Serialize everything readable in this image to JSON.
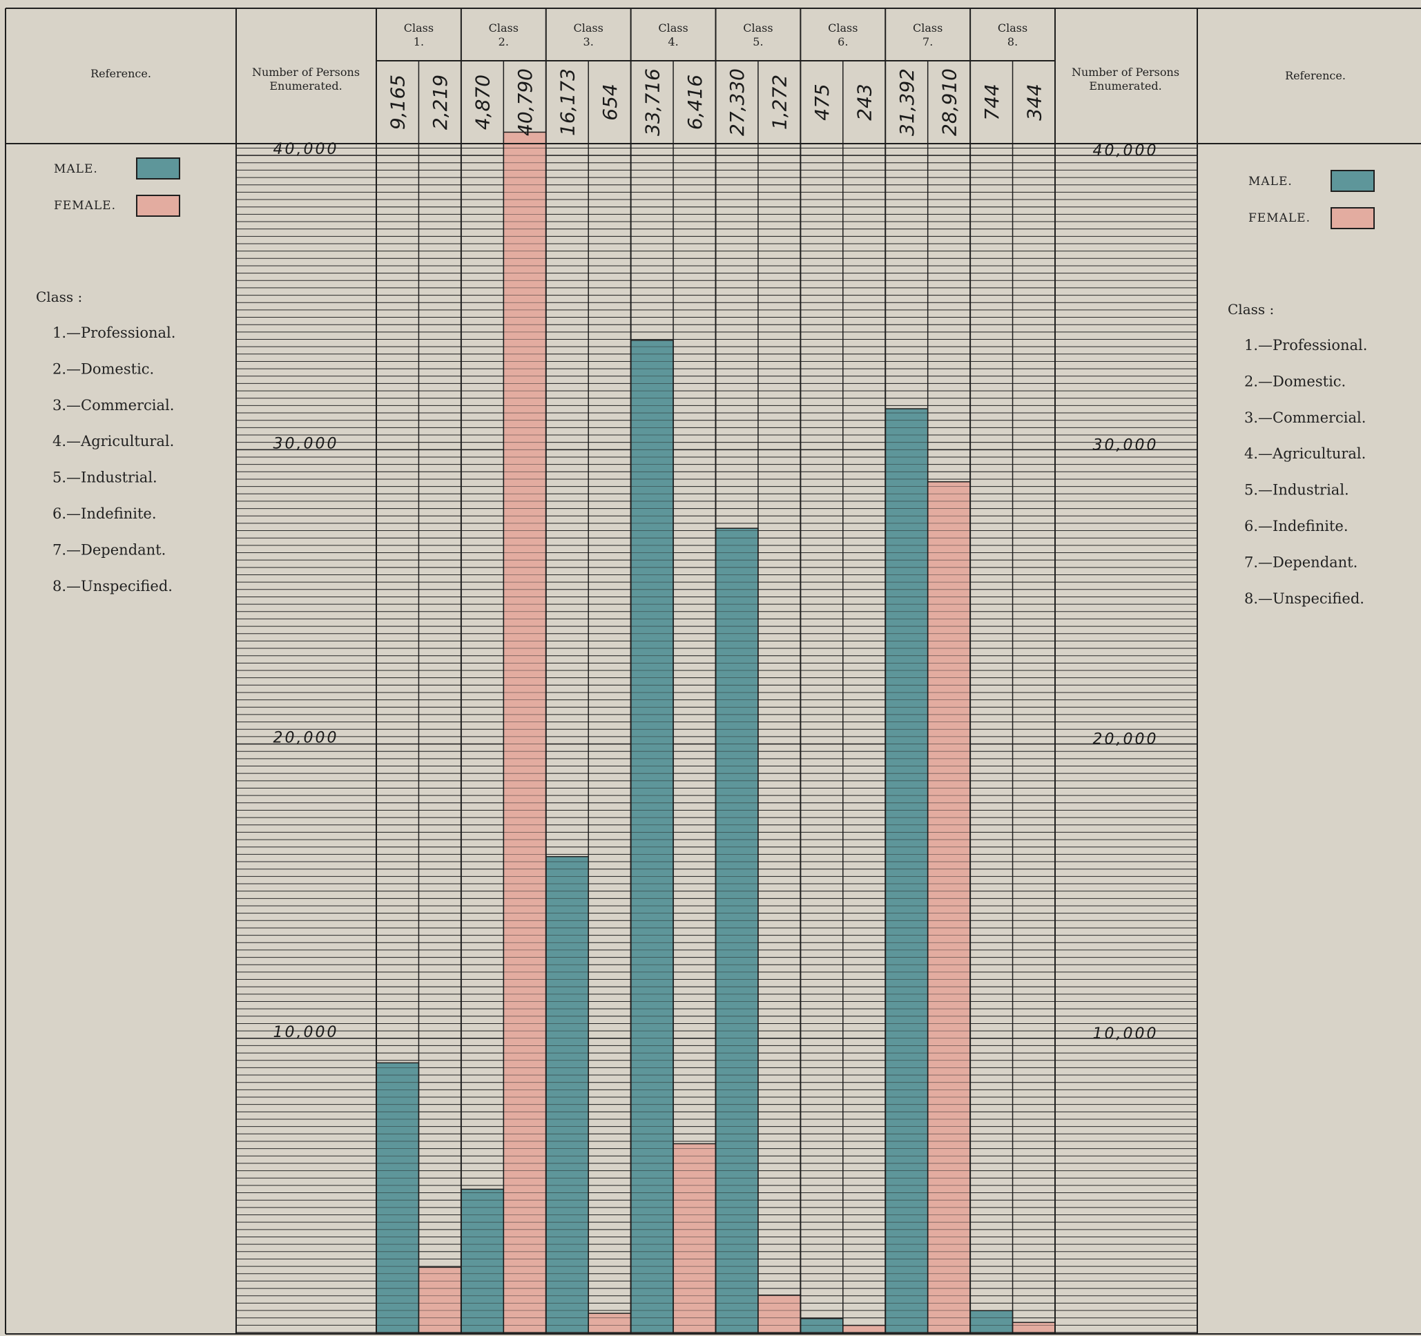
{
  "chart_data": {
    "type": "bar",
    "ylim": [
      0,
      45000
    ],
    "grid": true,
    "colors": {
      "male": "#5e969a",
      "female": "#e3aca0"
    },
    "legend": {
      "male_label": "MALE.",
      "female_label": "FEMALE."
    },
    "categories": [
      {
        "header": "Class",
        "num": "1.",
        "male_label": "9,165",
        "female_label": "2,219"
      },
      {
        "header": "Class",
        "num": "2.",
        "male_label": "4,870",
        "female_label": "40,790"
      },
      {
        "header": "Class",
        "num": "3.",
        "male_label": "16,173",
        "female_label": "654"
      },
      {
        "header": "Class",
        "num": "4.",
        "male_label": "33,716",
        "female_label": "6,416"
      },
      {
        "header": "Class",
        "num": "5.",
        "male_label": "27,330",
        "female_label": "1,272"
      },
      {
        "header": "Class",
        "num": "6.",
        "male_label": "475",
        "female_label": "243"
      },
      {
        "header": "Class",
        "num": "7.",
        "male_label": "31,392",
        "female_label": "28,910"
      },
      {
        "header": "Class",
        "num": "8.",
        "male_label": "744",
        "female_label": "344"
      }
    ],
    "series": [
      {
        "name": "MALE.",
        "values": [
          9165,
          4870,
          16173,
          33716,
          27330,
          475,
          31392,
          744
        ]
      },
      {
        "name": "FEMALE.",
        "values": [
          2219,
          40790,
          654,
          6416,
          1272,
          243,
          28910,
          344
        ]
      }
    ],
    "y_ticks": [
      {
        "value": 40000,
        "label": "40,000"
      },
      {
        "value": 30000,
        "label": "30,000"
      },
      {
        "value": 20000,
        "label": "20,000"
      },
      {
        "value": 10000,
        "label": "10,000"
      }
    ]
  },
  "header": {
    "reference": "Reference.",
    "persons_line1": "Number of Persons",
    "persons_line2": "Enumerated."
  },
  "class_key": {
    "title": "Class :",
    "items": [
      "1.—Professional.",
      "2.—Domestic.",
      "3.—Commercial.",
      "4.—Agricultural.",
      "5.—Industrial.",
      "6.—Indefinite.",
      "7.—Dependant.",
      "8.—Unspecified."
    ]
  }
}
